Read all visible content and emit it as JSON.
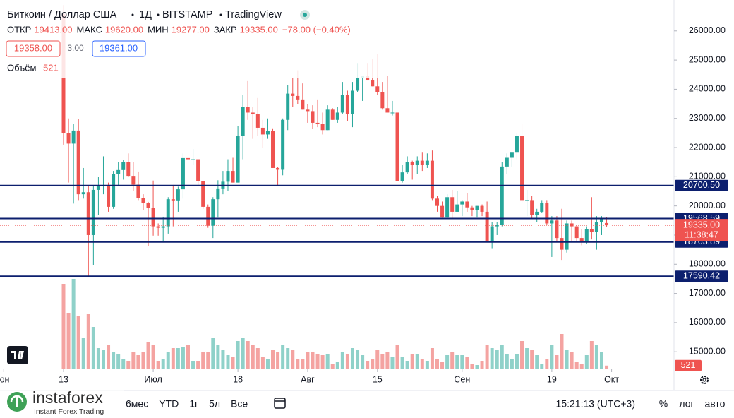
{
  "header": {
    "symbol": "Биткоин / Доллар США",
    "interval": "1Д",
    "exchange": "BITSTAMP",
    "source": "TradingView",
    "ohlc": [
      {
        "label": "ОТКР",
        "value": "19413.00"
      },
      {
        "label": "МАКС",
        "value": "19620.00"
      },
      {
        "label": "МИН",
        "value": "19277.00"
      },
      {
        "label": "ЗАКР",
        "value": "19335.00"
      }
    ],
    "change": "−78.00 (−0.40%)",
    "bid": "19358.00",
    "spread": "3.00",
    "ask": "19361.00",
    "volume_label": "Объём"
  },
  "toolbar": {
    "ranges": [
      "6мес",
      "YTD",
      "1г",
      "5л",
      "Все"
    ],
    "clock": "15:21:13 (UTC+3)",
    "options": [
      "%",
      "лог",
      "авто"
    ]
  },
  "watermark": {
    "brand": "instaforex",
    "tagline": "Instant Forex Trading"
  },
  "chart_data": {
    "type": "candlestick",
    "open": [
      26574,
      22487,
      22136,
      22584,
      20400,
      20470,
      19000,
      20550,
      20700,
      20700,
      19970,
      21100,
      21230,
      21500,
      21030,
      20730,
      20270,
      20100,
      19930,
      19300,
      19250,
      19300,
      20230,
      20190,
      20570,
      21640,
      21600,
      21600,
      20850,
      19970,
      19320,
      20230,
      20600,
      20830,
      21200,
      20800,
      22400,
      23400,
      23200,
      23150,
      22680,
      22450,
      22580,
      21300,
      21240,
      22950,
      23850,
      23770,
      23650,
      23300,
      23250,
      22850,
      22800,
      22600,
      23300,
      22950,
      23200,
      23800,
      23150,
      23950,
      24400,
      24450,
      24300,
      24100,
      23900,
      23350,
      23200,
      23200,
      20850,
      21150,
      21500,
      21400,
      21550,
      21400,
      21550,
      20250,
      20000,
      19600,
      20300,
      19800,
      20050,
      20150,
      19950,
      19850,
      20000,
      19800,
      18800,
      19300,
      19350,
      21350,
      21650,
      21850,
      22400,
      20200,
      20200,
      19700,
      19800,
      20100,
      19400,
      19500,
      18900,
      18500,
      19400,
      19300,
      18900,
      18800,
      19200,
      19100,
      19450,
      19413
    ],
    "high": [
      26883,
      23000,
      22800,
      22980,
      21300,
      20700,
      20700,
      21000,
      21700,
      20800,
      21200,
      21500,
      21580,
      21800,
      21500,
      21180,
      20400,
      20140,
      20870,
      19400,
      19630,
      20300,
      20720,
      20660,
      21800,
      22400,
      21950,
      21600,
      20850,
      20050,
      20300,
      20880,
      21200,
      21600,
      21650,
      22750,
      23800,
      24280,
      23400,
      23700,
      22950,
      23000,
      22660,
      21330,
      23000,
      24150,
      24400,
      24650,
      24200,
      23500,
      23450,
      23650,
      23200,
      23450,
      23350,
      23400,
      24250,
      23950,
      24250,
      24900,
      24450,
      24900,
      25050,
      25200,
      24250,
      24450,
      23600,
      23200,
      21400,
      21700,
      21550,
      21700,
      21850,
      21800,
      21900,
      20350,
      20150,
      20400,
      20550,
      20500,
      20200,
      20450,
      20000,
      20000,
      20050,
      20150,
      19450,
      19450,
      21500,
      21800,
      21850,
      22500,
      22800,
      20550,
      20350,
      19900,
      20200,
      20200,
      19650,
      19650,
      19900,
      19500,
      19500,
      19350,
      19200,
      19300,
      20300,
      19650,
      19650,
      19620
    ],
    "low": [
      22100,
      20800,
      20080,
      20200,
      20250,
      17600,
      17960,
      19700,
      20400,
      19800,
      19900,
      20700,
      20900,
      21000,
      20500,
      20200,
      19850,
      18630,
      18980,
      18980,
      18780,
      19050,
      19300,
      19800,
      20250,
      21200,
      21400,
      20700,
      19900,
      19250,
      18900,
      19600,
      20400,
      20500,
      20800,
      20800,
      21600,
      22950,
      22300,
      22400,
      22000,
      22300,
      21300,
      20700,
      21050,
      22600,
      23400,
      23500,
      23300,
      22850,
      22650,
      22700,
      22450,
      22600,
      22950,
      22850,
      23150,
      22900,
      22700,
      23900,
      23600,
      24300,
      24100,
      23800,
      23300,
      23200,
      23100,
      20850,
      20800,
      21100,
      20900,
      21100,
      21200,
      21300,
      20200,
      19800,
      19600,
      19550,
      19550,
      19800,
      19650,
      19800,
      19650,
      19600,
      19650,
      18750,
      18550,
      19000,
      19300,
      21100,
      21350,
      21600,
      20100,
      19650,
      19550,
      19450,
      19750,
      19350,
      18250,
      18800,
      18150,
      18400,
      18800,
      18800,
      18650,
      18700,
      18850,
      18500,
      19000,
      19277
    ],
    "close": [
      22487,
      22136,
      22584,
      20400,
      20470,
      19000,
      20550,
      20700,
      20700,
      19970,
      21100,
      21230,
      21500,
      21030,
      20730,
      20270,
      20100,
      19930,
      19300,
      19250,
      19300,
      20230,
      20190,
      20570,
      21640,
      21600,
      21600,
      20850,
      19970,
      19320,
      20230,
      20600,
      20830,
      21200,
      20800,
      22400,
      23400,
      23200,
      23150,
      22680,
      22450,
      22580,
      21300,
      21240,
      22950,
      23850,
      23770,
      23650,
      23300,
      23250,
      22850,
      22800,
      22600,
      23300,
      22950,
      23200,
      23800,
      23150,
      23950,
      24400,
      24450,
      24300,
      24100,
      23900,
      23350,
      23200,
      23200,
      20850,
      21150,
      21500,
      21400,
      21550,
      21400,
      21550,
      20250,
      20000,
      19600,
      20300,
      19800,
      20050,
      20150,
      19950,
      19850,
      20000,
      19800,
      18800,
      19300,
      19350,
      21350,
      21650,
      21850,
      22400,
      20200,
      20200,
      19700,
      19800,
      20100,
      19400,
      19500,
      18900,
      18500,
      19400,
      19300,
      18900,
      18800,
      19200,
      19100,
      19450,
      19570,
      19335
    ],
    "volume": [
      12100,
      8000,
      12800,
      7500,
      4500,
      7800,
      6000,
      3000,
      2800,
      3500,
      2500,
      2200,
      1500,
      1200,
      2500,
      2000,
      2500,
      3800,
      3500,
      1200,
      1500,
      2500,
      3000,
      3000,
      3200,
      3500,
      1200,
      1200,
      2500,
      2500,
      4500,
      3500,
      2800,
      2000,
      1800,
      4000,
      4500,
      4000,
      3500,
      3000,
      1800,
      1500,
      2800,
      2500,
      3500,
      3000,
      2800,
      1500,
      1500,
      2500,
      2500,
      2200,
      2000,
      2200,
      800,
      1000,
      2500,
      2200,
      3000,
      2800,
      2000,
      1200,
      1500,
      2800,
      2200,
      2500,
      1800,
      3500,
      1800,
      1200,
      2200,
      2200,
      1500,
      1200,
      3000,
      1500,
      1000,
      2000,
      2500,
      2000,
      2000,
      1800,
      800,
      600,
      1200,
      3500,
      3000,
      2800,
      3500,
      2200,
      1500,
      2200,
      4000,
      3000,
      2800,
      2000,
      800,
      1500,
      3500,
      2000,
      5000,
      2800,
      2500,
      1000,
      800,
      2000,
      4000,
      3500,
      2500,
      521
    ],
    "up_color": "#26a69a",
    "down_color": "#ef5350",
    "up_volume_color": "#8fd1c9",
    "down_volume_color": "#f4a3a1",
    "ylim": [
      14400,
      27060
    ],
    "yticks": [
      {
        "value": 15000,
        "label": "15000.00"
      },
      {
        "value": 16000,
        "label": "16000.00"
      },
      {
        "value": 17000,
        "label": "17000.00"
      },
      {
        "value": 18000,
        "label": "18000.00"
      },
      {
        "value": 19000,
        "label": "19000.00"
      },
      {
        "value": 20000,
        "label": "20000.00"
      },
      {
        "value": 21000,
        "label": "21000.00"
      },
      {
        "value": 22000,
        "label": "22000.00"
      },
      {
        "value": 23000,
        "label": "23000.00"
      },
      {
        "value": 24000,
        "label": "24000.00"
      },
      {
        "value": 25000,
        "label": "25000.00"
      },
      {
        "value": 26000,
        "label": "26000.00"
      }
    ],
    "xticks": [
      {
        "value": -12,
        "label": "юн"
      },
      {
        "value": 0,
        "label": "13"
      },
      {
        "value": 18,
        "label": "Июл"
      },
      {
        "value": 35,
        "label": "18"
      },
      {
        "value": 49,
        "label": "Авг"
      },
      {
        "value": 63,
        "label": "15"
      },
      {
        "value": 80,
        "label": "Сен"
      },
      {
        "value": 98,
        "label": "19"
      },
      {
        "value": 110,
        "label": "Окт"
      }
    ],
    "volume_ylim": [
      0,
      13000
    ],
    "levels": [
      {
        "value": 20700.5,
        "label": "20700.50"
      },
      {
        "value": 19568.59,
        "label": "19568.59"
      },
      {
        "value": 18763.89,
        "label": "18763.89"
      },
      {
        "value": 17590.42,
        "label": "17590.42"
      }
    ],
    "level_color": "#0c1f6e",
    "last_price": {
      "value": 19335,
      "label": "19335.00",
      "countdown": "11:38:47"
    }
  }
}
